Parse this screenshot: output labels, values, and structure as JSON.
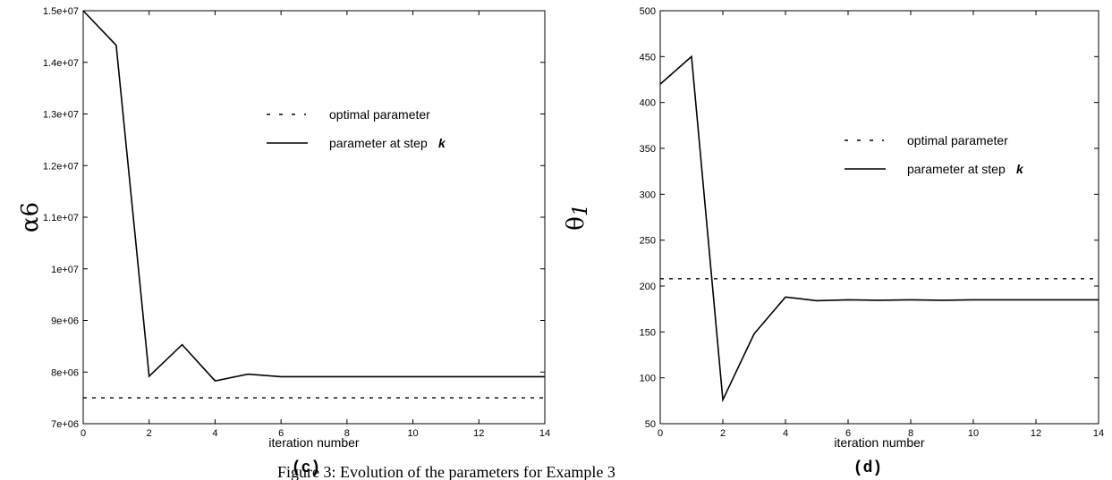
{
  "caption": "Figure 3: Evolution of the parameters for Example 3",
  "chart_data": [
    {
      "type": "line",
      "panel_label": "(c)",
      "xlabel": "iteration number",
      "ylabel": "α6",
      "xlim": [
        0,
        14
      ],
      "ylim": [
        7000000,
        15000000
      ],
      "x_ticks": [
        0,
        2,
        4,
        6,
        8,
        10,
        12,
        14
      ],
      "y_ticks": [
        7000000,
        8000000,
        9000000,
        10000000,
        11000000,
        12000000,
        13000000,
        14000000,
        15000000
      ],
      "y_tick_labels": [
        "7e+06",
        "8e+06",
        "9e+06",
        "1e+07",
        "1.1e+07",
        "1.2e+07",
        "1.3e+07",
        "1.4e+07",
        "1.5e+07"
      ],
      "legend": {
        "position": "top-right",
        "entries": [
          {
            "label": "optimal parameter",
            "style": "dotted"
          },
          {
            "label": "parameter at step",
            "suffix": "k",
            "style": "solid"
          }
        ]
      },
      "series": [
        {
          "name": "optimal parameter",
          "style": "dotted",
          "x": [
            0,
            14
          ],
          "y": [
            7500000,
            7500000
          ]
        },
        {
          "name": "parameter at step k",
          "style": "solid",
          "x": [
            0,
            1,
            2,
            3,
            4,
            5,
            6,
            7,
            8,
            9,
            10,
            11,
            12,
            13,
            14
          ],
          "y": [
            15000000,
            14330000,
            7920000,
            8530000,
            7830000,
            7960000,
            7910000,
            7910000,
            7910000,
            7910000,
            7910000,
            7910000,
            7910000,
            7910000,
            7910000
          ]
        }
      ]
    },
    {
      "type": "line",
      "panel_label": "(d)",
      "xlabel": "iteration number",
      "ylabel": "θ",
      "ylabel_subscript": "1",
      "xlim": [
        0,
        14
      ],
      "ylim": [
        50,
        500
      ],
      "x_ticks": [
        0,
        2,
        4,
        6,
        8,
        10,
        12,
        14
      ],
      "y_ticks": [
        50,
        100,
        150,
        200,
        250,
        300,
        350,
        400,
        450,
        500
      ],
      "y_tick_labels": [
        "50",
        "100",
        "150",
        "200",
        "250",
        "300",
        "350",
        "400",
        "450",
        "500"
      ],
      "legend": {
        "position": "top-right",
        "entries": [
          {
            "label": "optimal parameter",
            "style": "dotted"
          },
          {
            "label": "parameter at step",
            "suffix": "k",
            "style": "solid"
          }
        ]
      },
      "series": [
        {
          "name": "optimal parameter",
          "style": "dotted",
          "x": [
            0,
            14
          ],
          "y": [
            208,
            208
          ]
        },
        {
          "name": "parameter at step k",
          "style": "solid",
          "x": [
            0,
            1,
            2,
            3,
            4,
            5,
            6,
            7,
            8,
            9,
            10,
            11,
            12,
            13,
            14
          ],
          "y": [
            420,
            450,
            76,
            148,
            188,
            184,
            185,
            184.5,
            185,
            184.5,
            185,
            185,
            185,
            185,
            185
          ]
        }
      ]
    }
  ]
}
